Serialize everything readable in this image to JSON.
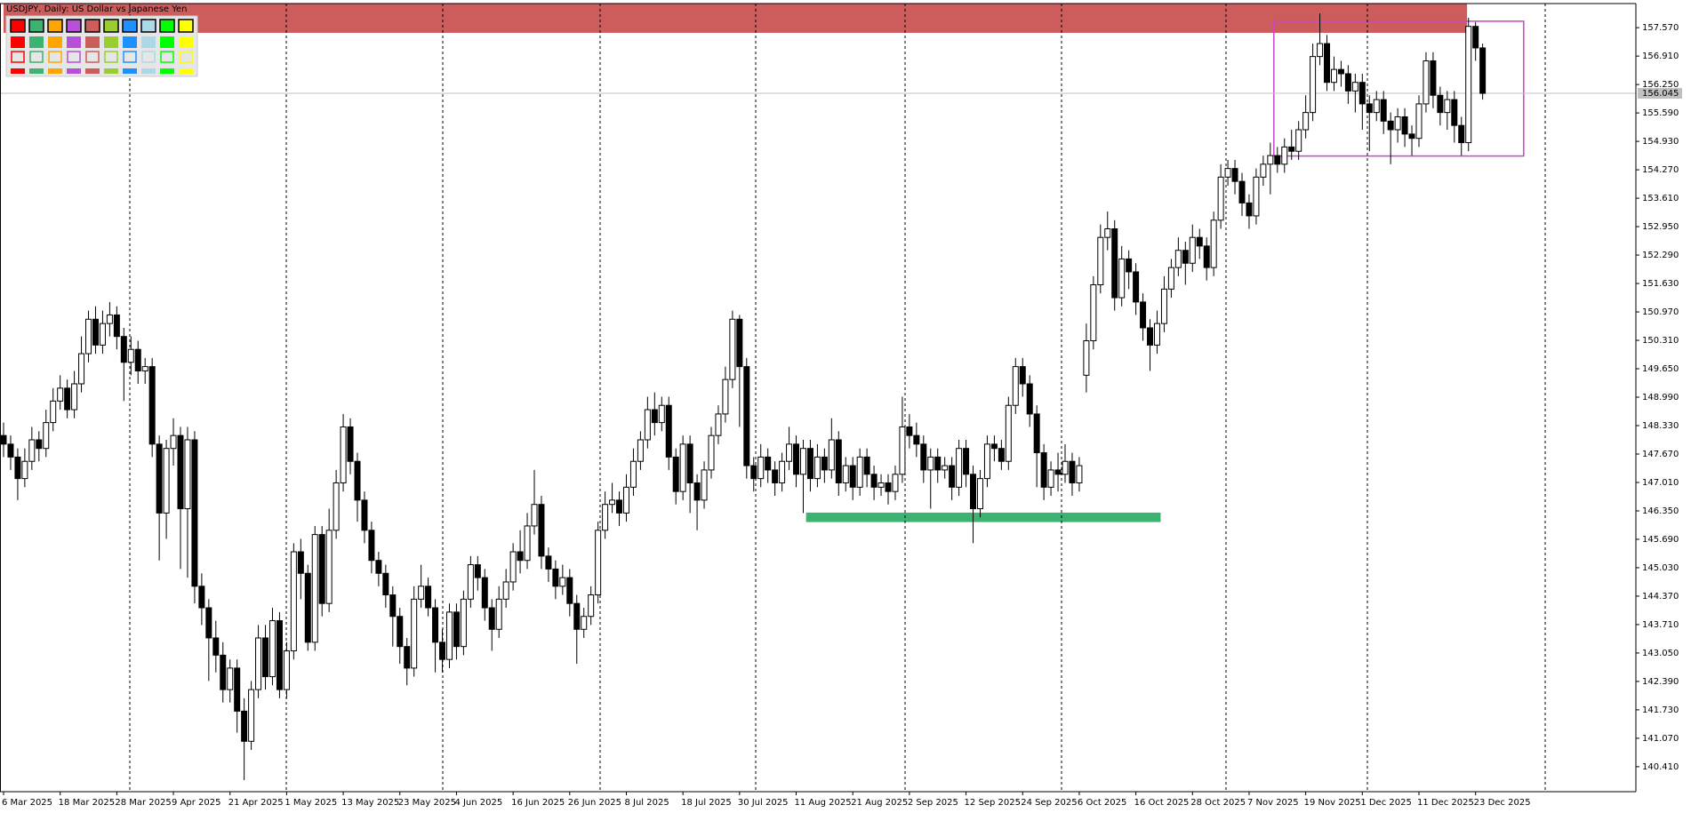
{
  "chart_data": {
    "type": "candlestick",
    "title": "USDJPY, Daily:  US Dollar vs Japanese Yen",
    "categories": [
      "6 Mar 2025",
      null,
      null,
      null,
      null,
      null,
      null,
      null,
      "18 Mar 2025",
      null,
      null,
      null,
      null,
      null,
      null,
      null,
      "28 Mar 2025",
      null,
      null,
      null,
      null,
      null,
      null,
      null,
      "9 Apr 2025",
      null,
      null,
      null,
      null,
      null,
      null,
      null,
      "21 Apr 2025",
      null,
      null,
      null,
      null,
      null,
      null,
      null,
      "1 May 2025",
      null,
      null,
      null,
      null,
      null,
      null,
      null,
      "13 May 2025",
      null,
      null,
      null,
      null,
      null,
      null,
      null,
      "23 May 2025",
      null,
      null,
      null,
      null,
      null,
      null,
      null,
      "4 Jun 2025",
      null,
      null,
      null,
      null,
      null,
      null,
      null,
      "16 Jun 2025",
      null,
      null,
      null,
      null,
      null,
      null,
      null,
      "26 Jun 2025",
      null,
      null,
      null,
      null,
      null,
      null,
      null,
      "8 Jul 2025",
      null,
      null,
      null,
      null,
      null,
      null,
      null,
      "18 Jul 2025",
      null,
      null,
      null,
      null,
      null,
      null,
      null,
      "30 Jul 2025",
      null,
      null,
      null,
      null,
      null,
      null,
      null,
      "11 Aug 2025",
      null,
      null,
      null,
      null,
      null,
      null,
      null,
      "21 Aug 2025",
      null,
      null,
      null,
      null,
      null,
      null,
      null,
      "2 Sep 2025",
      null,
      null,
      null,
      null,
      null,
      null,
      null,
      "12 Sep 2025",
      null,
      null,
      null,
      null,
      null,
      null,
      null,
      "24 Sep 2025",
      null,
      null,
      null,
      null,
      null,
      null,
      null,
      "6 Oct 2025",
      null,
      null,
      null,
      null,
      null,
      null,
      null,
      "16 Oct 2025",
      null,
      null,
      null,
      null,
      null,
      null,
      null,
      "28 Oct 2025",
      null,
      null,
      null,
      null,
      null,
      null,
      null,
      "7 Nov 2025",
      null,
      null,
      null,
      null,
      null,
      null,
      null,
      "19 Nov 2025",
      null,
      null,
      null,
      null,
      null,
      null,
      null,
      "1 Dec 2025",
      null,
      null,
      null,
      null,
      null,
      null,
      null,
      "11 Dec 2025",
      null,
      null,
      null,
      null,
      null,
      null,
      null,
      "23 Dec 2025",
      null
    ],
    "open": [
      148.1,
      147.9,
      147.6,
      147.1,
      147.5,
      148.0,
      147.8,
      148.4,
      148.9,
      149.2,
      148.7,
      149.3,
      150.0,
      150.8,
      150.2,
      150.7,
      150.9,
      150.4,
      149.8,
      150.1,
      149.6,
      149.7,
      147.9,
      146.3,
      147.8,
      148.1,
      146.4,
      148.0,
      144.6,
      144.1,
      143.4,
      143.0,
      142.2,
      142.7,
      141.7,
      141.0,
      142.2,
      143.4,
      142.5,
      143.8,
      142.2,
      143.1,
      145.4,
      144.9,
      143.3,
      145.8,
      144.2,
      145.9,
      147.0,
      148.3,
      147.5,
      146.6,
      145.9,
      145.2,
      144.9,
      144.4,
      143.9,
      143.2,
      142.7,
      144.3,
      144.6,
      144.1,
      143.3,
      142.9,
      144.0,
      143.2,
      144.3,
      145.1,
      144.8,
      144.1,
      143.6,
      144.3,
      144.7,
      145.4,
      145.2,
      146.0,
      146.5,
      145.3,
      145.0,
      144.6,
      144.8,
      144.2,
      143.6,
      143.9,
      144.4,
      145.9,
      146.5,
      146.6,
      146.3,
      146.9,
      147.5,
      148.0,
      148.7,
      148.4,
      148.8,
      147.6,
      146.8,
      147.9,
      147.0,
      146.6,
      147.3,
      148.1,
      148.6,
      149.4,
      150.8,
      149.7,
      147.4,
      147.1,
      147.6,
      147.3,
      147.0,
      147.5,
      147.9,
      147.2,
      147.8,
      147.1,
      147.6,
      147.3,
      148.0,
      147.0,
      147.4,
      146.9,
      147.6,
      147.2,
      146.9,
      147.0,
      146.8,
      147.2,
      148.3,
      148.1,
      147.9,
      147.3,
      147.6,
      147.3,
      147.4,
      146.9,
      147.8,
      147.2,
      146.4,
      147.1,
      147.9,
      147.8,
      147.5,
      148.8,
      149.7,
      149.3,
      148.6,
      147.7,
      146.9,
      147.3,
      147.2,
      147.5,
      147.0,
      149.5,
      150.3,
      151.6,
      152.7,
      152.9,
      151.3,
      152.2,
      151.9,
      151.2,
      150.6,
      150.2,
      150.7,
      151.5,
      152.0,
      152.4,
      152.1,
      152.7,
      152.5,
      152.0,
      153.1,
      154.1,
      154.3,
      154.0,
      153.5,
      153.2,
      154.1,
      154.4,
      154.6,
      154.4,
      154.8,
      154.7,
      155.2,
      155.6,
      156.9,
      157.2,
      156.3,
      156.6,
      156.5,
      156.1,
      156.3,
      155.8,
      155.6,
      155.9,
      155.4,
      155.2,
      155.5,
      155.1,
      155.0,
      155.8,
      156.8,
      156.0,
      155.6,
      155.9,
      155.3,
      154.9,
      157.6,
      157.1
    ],
    "high": [
      148.4,
      148.1,
      147.8,
      147.8,
      148.3,
      148.2,
      148.7,
      149.2,
      149.5,
      149.4,
      149.6,
      150.4,
      151.0,
      151.1,
      151.0,
      151.2,
      151.1,
      150.6,
      150.4,
      150.3,
      149.9,
      149.9,
      148.1,
      148.0,
      148.5,
      148.3,
      148.3,
      148.2,
      144.9,
      144.3,
      143.8,
      143.3,
      142.9,
      142.9,
      142.0,
      142.4,
      143.7,
      143.7,
      144.1,
      144.0,
      143.3,
      145.6,
      145.7,
      145.1,
      146.0,
      146.0,
      146.4,
      147.3,
      148.6,
      148.5,
      147.7,
      146.8,
      146.1,
      145.4,
      145.1,
      144.6,
      144.1,
      143.4,
      144.6,
      145.1,
      144.8,
      144.3,
      143.6,
      144.2,
      144.2,
      144.5,
      145.3,
      145.3,
      145.0,
      144.3,
      144.6,
      145.0,
      145.6,
      145.9,
      146.3,
      147.3,
      146.7,
      145.5,
      145.2,
      145.1,
      145.0,
      144.4,
      144.1,
      144.6,
      146.1,
      146.8,
      147.0,
      146.8,
      147.2,
      147.8,
      148.2,
      149.0,
      149.1,
      149.0,
      149.0,
      147.8,
      148.1,
      148.1,
      147.2,
      147.5,
      148.3,
      148.8,
      149.7,
      151.0,
      150.9,
      149.9,
      147.6,
      147.9,
      147.8,
      147.5,
      147.7,
      148.3,
      148.1,
      148.0,
      148.0,
      147.9,
      147.8,
      148.5,
      148.2,
      147.6,
      147.6,
      147.8,
      147.8,
      147.4,
      147.2,
      147.2,
      147.4,
      149.0,
      148.6,
      148.4,
      148.1,
      147.8,
      147.8,
      147.6,
      147.6,
      148.0,
      148.0,
      147.4,
      147.3,
      148.1,
      148.1,
      148.0,
      149.0,
      149.9,
      149.9,
      149.5,
      148.8,
      147.9,
      147.5,
      147.7,
      147.9,
      147.7,
      147.6,
      150.7,
      151.8,
      153.0,
      153.3,
      153.1,
      152.5,
      152.4,
      152.1,
      151.4,
      150.8,
      151.0,
      151.8,
      152.2,
      152.7,
      152.6,
      153.0,
      152.9,
      152.7,
      153.3,
      154.4,
      154.5,
      154.5,
      154.2,
      153.7,
      154.3,
      154.6,
      154.9,
      154.8,
      155.0,
      155.2,
      155.4,
      156.0,
      157.2,
      157.9,
      157.4,
      156.9,
      156.8,
      156.7,
      156.5,
      156.5,
      156.0,
      156.1,
      156.1,
      155.6,
      155.7,
      155.7,
      155.3,
      156.0,
      157.0,
      157.0,
      156.2,
      156.1,
      156.1,
      155.5,
      157.8,
      157.7,
      157.2
    ],
    "low": [
      147.6,
      147.3,
      146.6,
      146.9,
      147.3,
      147.5,
      147.6,
      148.2,
      148.7,
      148.5,
      148.5,
      149.1,
      149.8,
      150.0,
      150.0,
      150.4,
      150.1,
      148.9,
      149.5,
      149.3,
      149.3,
      147.6,
      145.2,
      145.7,
      147.4,
      145.0,
      144.8,
      144.2,
      143.7,
      142.4,
      142.6,
      141.9,
      141.9,
      141.2,
      140.1,
      140.8,
      142.0,
      142.2,
      142.3,
      142.0,
      142.0,
      142.9,
      144.3,
      143.1,
      143.1,
      143.9,
      144.0,
      145.7,
      146.8,
      147.2,
      146.1,
      145.6,
      144.9,
      144.6,
      144.1,
      143.2,
      142.8,
      142.3,
      142.5,
      144.1,
      143.9,
      142.6,
      142.6,
      142.7,
      142.9,
      143.0,
      144.1,
      144.5,
      143.8,
      143.1,
      143.4,
      144.1,
      144.5,
      144.9,
      145.0,
      145.8,
      145.0,
      144.7,
      144.3,
      144.4,
      143.9,
      142.8,
      143.4,
      143.7,
      144.2,
      145.7,
      146.3,
      146.0,
      146.1,
      146.7,
      147.3,
      147.8,
      148.1,
      148.2,
      147.3,
      146.5,
      146.6,
      146.3,
      145.9,
      146.4,
      147.1,
      147.9,
      148.4,
      149.2,
      148.3,
      147.1,
      146.8,
      146.9,
      147.0,
      146.7,
      146.8,
      147.3,
      146.9,
      146.3,
      146.8,
      146.9,
      147.0,
      147.1,
      146.7,
      146.8,
      146.6,
      146.7,
      146.9,
      146.6,
      146.7,
      146.5,
      146.6,
      147.0,
      147.8,
      147.6,
      147.0,
      146.4,
      147.0,
      147.1,
      146.6,
      146.7,
      146.9,
      145.6,
      146.2,
      146.9,
      147.5,
      147.3,
      147.3,
      148.6,
      149.0,
      148.3,
      146.9,
      146.6,
      146.7,
      146.8,
      147.0,
      146.7,
      146.8,
      149.1,
      150.1,
      151.4,
      152.4,
      151.0,
      151.1,
      151.5,
      150.9,
      150.3,
      149.6,
      150.0,
      150.5,
      151.3,
      151.8,
      151.6,
      151.9,
      152.2,
      151.7,
      151.8,
      152.9,
      153.9,
      153.7,
      153.2,
      152.9,
      153.0,
      153.9,
      153.7,
      154.2,
      154.2,
      154.5,
      154.5,
      155.0,
      155.4,
      156.7,
      156.1,
      156.1,
      156.2,
      155.8,
      155.6,
      155.2,
      154.7,
      155.4,
      155.1,
      154.4,
      154.9,
      154.8,
      154.6,
      154.8,
      155.6,
      155.7,
      155.3,
      155.2,
      154.9,
      154.6,
      154.7,
      156.8,
      155.9
    ],
    "close": [
      147.9,
      147.6,
      147.1,
      147.5,
      148.0,
      147.8,
      148.4,
      148.9,
      149.2,
      148.7,
      149.3,
      150.0,
      150.8,
      150.2,
      150.7,
      150.9,
      150.4,
      149.8,
      150.1,
      149.6,
      149.7,
      147.9,
      146.3,
      147.8,
      148.1,
      146.4,
      148.0,
      144.6,
      144.1,
      143.4,
      143.0,
      142.2,
      142.7,
      141.7,
      141.0,
      142.2,
      143.4,
      142.5,
      143.8,
      142.2,
      143.1,
      145.4,
      144.9,
      143.3,
      145.8,
      144.2,
      145.9,
      147.0,
      148.3,
      147.5,
      146.6,
      145.9,
      145.2,
      144.9,
      144.4,
      143.9,
      143.2,
      142.7,
      144.3,
      144.6,
      144.1,
      143.3,
      142.9,
      144.0,
      143.2,
      144.3,
      145.1,
      144.8,
      144.1,
      143.6,
      144.3,
      144.7,
      145.4,
      145.2,
      146.0,
      146.5,
      145.3,
      145.0,
      144.6,
      144.8,
      144.2,
      143.6,
      143.9,
      144.4,
      145.9,
      146.5,
      146.6,
      146.3,
      146.9,
      147.5,
      148.0,
      148.7,
      148.4,
      148.8,
      147.6,
      146.8,
      147.9,
      147.0,
      146.6,
      147.3,
      148.1,
      148.6,
      149.4,
      150.8,
      149.7,
      147.4,
      147.1,
      147.6,
      147.3,
      147.0,
      147.5,
      147.9,
      147.2,
      147.8,
      147.1,
      147.6,
      147.3,
      148.0,
      147.0,
      147.4,
      146.9,
      147.6,
      147.2,
      146.9,
      147.0,
      146.8,
      147.2,
      148.3,
      148.1,
      147.9,
      147.3,
      147.6,
      147.3,
      147.4,
      146.9,
      147.8,
      147.2,
      146.4,
      147.1,
      147.9,
      147.8,
      147.5,
      148.8,
      149.7,
      149.3,
      148.6,
      147.7,
      146.9,
      147.3,
      147.2,
      147.5,
      147.0,
      147.4,
      150.3,
      151.6,
      152.7,
      152.9,
      151.3,
      152.2,
      151.9,
      151.2,
      150.6,
      150.2,
      150.7,
      151.5,
      152.0,
      152.4,
      152.1,
      152.7,
      152.5,
      152.0,
      153.1,
      154.1,
      154.3,
      154.0,
      153.5,
      153.2,
      154.1,
      154.4,
      154.6,
      154.4,
      154.8,
      154.7,
      155.2,
      155.6,
      156.9,
      157.2,
      156.3,
      156.6,
      156.5,
      156.1,
      156.3,
      155.8,
      155.6,
      155.9,
      155.4,
      155.2,
      155.5,
      155.1,
      155.0,
      155.8,
      156.8,
      156.0,
      155.6,
      155.9,
      155.3,
      154.9,
      157.6,
      157.1,
      156.045
    ],
    "up_color": "#ffffff",
    "down_color": "#000000",
    "ylim": [
      139.83,
      158.13
    ],
    "yticks": [
      {
        "value": 157.57,
        "label": "157.570"
      },
      {
        "value": 156.91,
        "label": "156.910"
      },
      {
        "value": 156.25,
        "label": "156.250"
      },
      {
        "value": 155.59,
        "label": "155.590"
      },
      {
        "value": 154.93,
        "label": "154.930"
      },
      {
        "value": 154.27,
        "label": "154.270"
      },
      {
        "value": 153.61,
        "label": "153.610"
      },
      {
        "value": 152.95,
        "label": "152.950"
      },
      {
        "value": 152.29,
        "label": "152.290"
      },
      {
        "value": 151.63,
        "label": "151.630"
      },
      {
        "value": 150.97,
        "label": "150.970"
      },
      {
        "value": 150.31,
        "label": "150.310"
      },
      {
        "value": 149.65,
        "label": "149.650"
      },
      {
        "value": 148.99,
        "label": "148.990"
      },
      {
        "value": 148.33,
        "label": "148.330"
      },
      {
        "value": 147.67,
        "label": "147.670"
      },
      {
        "value": 147.01,
        "label": "147.010"
      },
      {
        "value": 146.35,
        "label": "146.350"
      },
      {
        "value": 145.69,
        "label": "145.690"
      },
      {
        "value": 145.03,
        "label": "145.030"
      },
      {
        "value": 144.37,
        "label": "144.370"
      },
      {
        "value": 143.71,
        "label": "143.710"
      },
      {
        "value": 143.05,
        "label": "143.050"
      },
      {
        "value": 142.39,
        "label": "142.390"
      },
      {
        "value": 141.73,
        "label": "141.730"
      },
      {
        "value": 141.07,
        "label": "141.070"
      },
      {
        "value": 140.41,
        "label": "140.410"
      }
    ],
    "last_price": 156.045,
    "zones": [
      {
        "color": "#cd5c5c",
        "fill": true,
        "from": 0,
        "to": 206.8,
        "low": 157.45,
        "high": 158.13
      },
      {
        "color": "#3cb371",
        "fill": true,
        "from": 113.4,
        "to": 163.5,
        "low": 146.09,
        "high": 146.31
      },
      {
        "color": "#cc44cc",
        "fill": false,
        "from": 179.5,
        "to": 214.8,
        "low": 154.59,
        "high": 157.72
      }
    ]
  }
}
